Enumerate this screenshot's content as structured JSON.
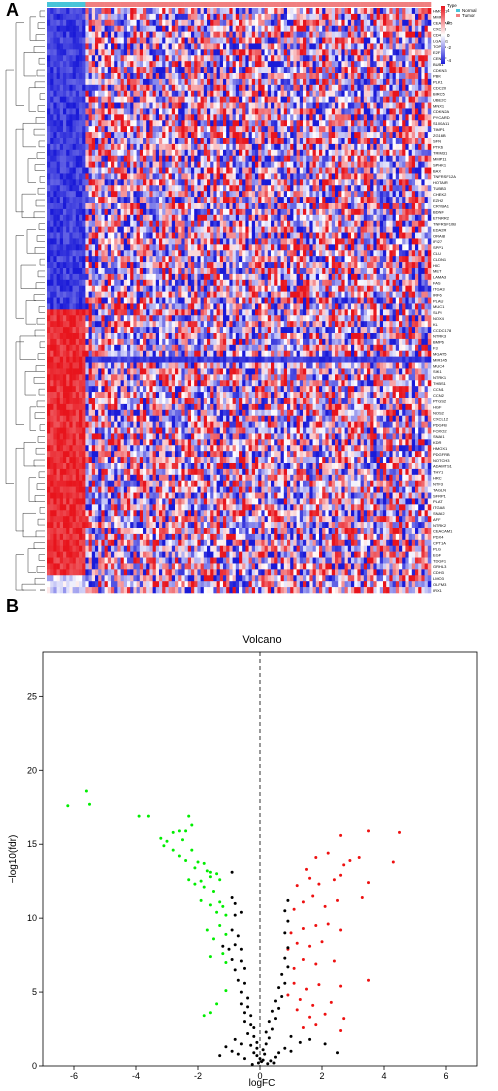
{
  "panels": {
    "a": "A",
    "b": "B"
  },
  "heatmap": {
    "legend_title": "Type",
    "legend_labels": [
      "Normal",
      "Tumor"
    ],
    "scale_ticks": [
      "4",
      "2",
      "0",
      "-2",
      "-4"
    ],
    "colors": {
      "high": "#e8141c",
      "mid": "#ffffff",
      "low": "#1a1ad8",
      "normal_bar": "#48c4d8",
      "tumor_bar": "#f07f7f"
    },
    "genes": [
      "HMGB1",
      "MMP9",
      "CEACAM5",
      "CXCL8",
      "CD44",
      "LGALS1",
      "TOP2A",
      "E2F1",
      "CENPF",
      "BUB1",
      "CDKN3",
      "PBK",
      "PLK1",
      "CDC20",
      "BIRC5",
      "UBE2C",
      "MNX1",
      "CDKN2A",
      "PYCARD",
      "S100A11",
      "TIMP1",
      "ZG16B",
      "SFN",
      "PTK6",
      "TRIM31",
      "MMP11",
      "SPHK1",
      "BAX",
      "TNFRSF12A",
      "HOTAIR",
      "TUBB3",
      "CHEK2",
      "EZH2",
      "CRYBA1",
      "BDNF",
      "ETNRR2",
      "TNFRSF10B",
      "EDA2R",
      "ORAI8",
      "IFI27",
      "SPP1",
      "CLU",
      "CLDN1",
      "HIC",
      "MET",
      "LAMA3",
      "FAS",
      "ITGA3",
      "IRF6",
      "PLAU",
      "MUC1",
      "SLPI",
      "NOX4",
      "KL",
      "CCDC178",
      "NTRK3",
      "BMP6",
      "F3",
      "MGAT5",
      "MIR145",
      "MUC4",
      "SIK1",
      "NTRK1",
      "THBS1",
      "CCN1",
      "CCN2",
      "PTGS2",
      "HGF",
      "NOS2",
      "CXCL12",
      "PDGFB",
      "FOXO2",
      "SNAI1",
      "KDR",
      "HMOX1",
      "PDGFRB",
      "NOTCH3",
      "ADAMTS1",
      "THY1",
      "HRC",
      "NTF3",
      "TAGLN",
      "SFRP1",
      "PLAT",
      "ITGA8",
      "SNAI2",
      "AFF",
      "NTRK2",
      "CEACAM1",
      "PDX4",
      "CPT1A",
      "PLG",
      "EGF",
      "TDGF1",
      "GRHL3",
      "CDH3",
      "LMO3",
      "OLFM3",
      "IRX1"
    ]
  },
  "volcano": {
    "title": "Volcano",
    "x_ticks": [
      "-6",
      "-4",
      "-2",
      "0",
      "2",
      "4",
      "6"
    ],
    "y_ticks": [
      "0",
      "5",
      "10",
      "15",
      "20",
      "25"
    ]
  },
  "chart_data": [
    {
      "type": "heatmap",
      "rows": 99,
      "cols": 120,
      "groups": [
        {
          "name": "Normal",
          "count": 12
        },
        {
          "name": "Tumor",
          "count": 108
        }
      ],
      "color_range": [
        -4,
        4
      ],
      "up_gene_count": 51,
      "down_gene_count": 48
    },
    {
      "type": "scatter",
      "title": "Volcano",
      "xlabel": "logFC",
      "ylabel": "−log10(fdr)",
      "xlim": [
        -7,
        7
      ],
      "ylim": [
        0,
        28
      ],
      "threshold_x": 0,
      "series": [
        {
          "name": "down",
          "color": "#00ee00",
          "points": [
            [
              -6.2,
              17.6
            ],
            [
              -5.6,
              18.6
            ],
            [
              -5.5,
              17.7
            ],
            [
              -3.9,
              16.9
            ],
            [
              -3.6,
              16.9
            ],
            [
              -3.2,
              15.4
            ],
            [
              -3.1,
              14.9
            ],
            [
              -3.0,
              15.2
            ],
            [
              -2.8,
              15.8
            ],
            [
              -2.6,
              15.9
            ],
            [
              -2.5,
              15.3
            ],
            [
              -2.4,
              15.9
            ],
            [
              -2.3,
              16.9
            ],
            [
              -2.2,
              16.3
            ],
            [
              -2.8,
              14.6
            ],
            [
              -2.6,
              14.2
            ],
            [
              -2.4,
              13.9
            ],
            [
              -2.2,
              14.6
            ],
            [
              -2.1,
              13.4
            ],
            [
              -2.0,
              13.8
            ],
            [
              -1.8,
              13.7
            ],
            [
              -1.7,
              13.2
            ],
            [
              -1.6,
              13.1
            ],
            [
              -2.3,
              12.6
            ],
            [
              -2.1,
              12.3
            ],
            [
              -1.9,
              12.5
            ],
            [
              -1.8,
              12.1
            ],
            [
              -1.6,
              12.8
            ],
            [
              -1.5,
              11.8
            ],
            [
              -1.4,
              13.0
            ],
            [
              -1.3,
              12.6
            ],
            [
              -1.9,
              11.2
            ],
            [
              -1.6,
              10.9
            ],
            [
              -1.4,
              10.4
            ],
            [
              -1.3,
              11.1
            ],
            [
              -1.2,
              10.8
            ],
            [
              -1.1,
              10.2
            ],
            [
              -1.7,
              9.2
            ],
            [
              -1.5,
              8.6
            ],
            [
              -1.3,
              9.5
            ],
            [
              -1.1,
              8.9
            ],
            [
              -1.6,
              7.4
            ],
            [
              -1.2,
              7.6
            ],
            [
              -1.1,
              7.0
            ],
            [
              -1.4,
              4.2
            ],
            [
              -1.6,
              3.6
            ],
            [
              -1.8,
              3.4
            ],
            [
              -1.1,
              5.1
            ]
          ]
        },
        {
          "name": "up",
          "color": "#ee1111",
          "points": [
            [
              4.5,
              15.8
            ],
            [
              3.5,
              15.9
            ],
            [
              2.6,
              15.6
            ],
            [
              4.3,
              13.8
            ],
            [
              3.2,
              14.1
            ],
            [
              2.9,
              13.9
            ],
            [
              2.7,
              13.6
            ],
            [
              2.2,
              14.4
            ],
            [
              1.8,
              14.1
            ],
            [
              1.5,
              13.3
            ],
            [
              3.5,
              12.4
            ],
            [
              2.6,
              12.9
            ],
            [
              2.4,
              12.6
            ],
            [
              1.9,
              12.3
            ],
            [
              1.6,
              12.7
            ],
            [
              1.2,
              12.2
            ],
            [
              3.3,
              11.4
            ],
            [
              2.5,
              11.2
            ],
            [
              2.1,
              10.8
            ],
            [
              1.7,
              11.5
            ],
            [
              1.4,
              11.1
            ],
            [
              1.1,
              10.6
            ],
            [
              2.6,
              9.2
            ],
            [
              2.2,
              9.6
            ],
            [
              1.8,
              9.5
            ],
            [
              1.4,
              9.3
            ],
            [
              1.0,
              9.0
            ],
            [
              2.0,
              8.4
            ],
            [
              1.6,
              8.1
            ],
            [
              1.2,
              8.3
            ],
            [
              0.9,
              7.9
            ],
            [
              2.4,
              7.1
            ],
            [
              1.8,
              6.9
            ],
            [
              1.4,
              7.2
            ],
            [
              1.1,
              6.6
            ],
            [
              3.5,
              5.8
            ],
            [
              2.6,
              5.4
            ],
            [
              1.9,
              5.5
            ],
            [
              1.5,
              5.2
            ],
            [
              1.1,
              5.6
            ],
            [
              2.3,
              4.3
            ],
            [
              1.7,
              4.1
            ],
            [
              1.3,
              4.5
            ],
            [
              0.9,
              4.8
            ],
            [
              2.7,
              3.2
            ],
            [
              2.1,
              3.5
            ],
            [
              1.6,
              3.3
            ],
            [
              1.2,
              3.8
            ],
            [
              2.6,
              2.4
            ],
            [
              1.8,
              2.8
            ],
            [
              1.4,
              2.6
            ]
          ]
        },
        {
          "name": "ns",
          "color": "#000000",
          "points": [
            [
              -0.9,
              13.1
            ],
            [
              -0.9,
              11.4
            ],
            [
              -0.8,
              11.0
            ],
            [
              -0.8,
              10.2
            ],
            [
              -0.6,
              10.4
            ],
            [
              -0.9,
              9.2
            ],
            [
              -0.7,
              8.8
            ],
            [
              -1.2,
              8.1
            ],
            [
              -1.0,
              7.9
            ],
            [
              -0.8,
              8.2
            ],
            [
              -0.6,
              7.9
            ],
            [
              -0.9,
              7.2
            ],
            [
              -0.6,
              7.1
            ],
            [
              -0.8,
              6.5
            ],
            [
              -0.5,
              6.6
            ],
            [
              -0.7,
              5.8
            ],
            [
              -0.5,
              5.6
            ],
            [
              -0.6,
              5.0
            ],
            [
              -0.4,
              4.6
            ],
            [
              -0.6,
              4.2
            ],
            [
              -0.4,
              4.0
            ],
            [
              -0.5,
              3.6
            ],
            [
              -0.3,
              3.4
            ],
            [
              -0.5,
              3.0
            ],
            [
              -0.3,
              2.8
            ],
            [
              -0.2,
              2.6
            ],
            [
              -0.4,
              2.2
            ],
            [
              -0.2,
              2.0
            ],
            [
              -0.1,
              1.6
            ],
            [
              -0.3,
              1.4
            ],
            [
              -0.1,
              1.2
            ],
            [
              -0.2,
              0.9
            ],
            [
              -0.1,
              0.7
            ],
            [
              0.0,
              0.5
            ],
            [
              0.05,
              0.3
            ],
            [
              -0.05,
              0.2
            ],
            [
              0.1,
              0.4
            ],
            [
              0.15,
              0.8
            ],
            [
              0.1,
              1.1
            ],
            [
              0.2,
              1.5
            ],
            [
              0.3,
              1.9
            ],
            [
              0.2,
              2.3
            ],
            [
              0.4,
              2.5
            ],
            [
              0.3,
              3.0
            ],
            [
              0.5,
              3.2
            ],
            [
              0.4,
              3.7
            ],
            [
              0.6,
              3.9
            ],
            [
              0.5,
              4.4
            ],
            [
              0.7,
              4.7
            ],
            [
              0.6,
              5.3
            ],
            [
              0.8,
              5.6
            ],
            [
              0.7,
              6.2
            ],
            [
              0.9,
              6.7
            ],
            [
              0.8,
              7.3
            ],
            [
              0.9,
              8.0
            ],
            [
              0.8,
              9.0
            ],
            [
              0.9,
              9.8
            ],
            [
              0.8,
              10.5
            ],
            [
              0.9,
              11.2
            ],
            [
              1.0,
              2.0
            ],
            [
              1.3,
              1.6
            ],
            [
              1.6,
              1.8
            ],
            [
              2.1,
              1.5
            ],
            [
              2.5,
              0.9
            ],
            [
              1.0,
              1.0
            ],
            [
              0.8,
              1.2
            ],
            [
              0.6,
              0.9
            ],
            [
              0.5,
              0.6
            ],
            [
              0.35,
              0.35
            ],
            [
              -0.5,
              0.5
            ],
            [
              -0.7,
              0.8
            ],
            [
              -0.9,
              1.0
            ],
            [
              -1.1,
              1.3
            ],
            [
              -1.3,
              0.7
            ],
            [
              -0.6,
              1.5
            ],
            [
              -0.8,
              1.8
            ],
            [
              0.25,
              0.15
            ],
            [
              -0.25,
              0.1
            ],
            [
              0.45,
              0.2
            ]
          ]
        }
      ]
    }
  ]
}
